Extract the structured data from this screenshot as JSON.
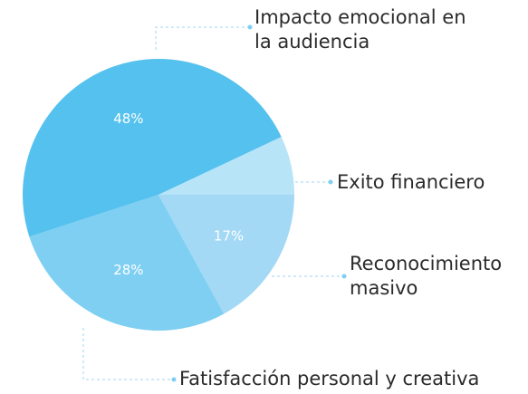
{
  "chart_data": {
    "type": "pie",
    "categories": [
      "Exito financiero",
      "Impacto emocional en la audiencia",
      "Reconocimiento masivo",
      "Fatisfacción personal y creativa"
    ],
    "values": [
      7,
      48,
      17,
      28
    ],
    "value_labels": [
      null,
      "48%",
      "17%",
      "28%"
    ],
    "colors": [
      "#b8e4f8",
      "#55c1ee",
      "#a3d9f5",
      "#7ecff2"
    ]
  }
}
